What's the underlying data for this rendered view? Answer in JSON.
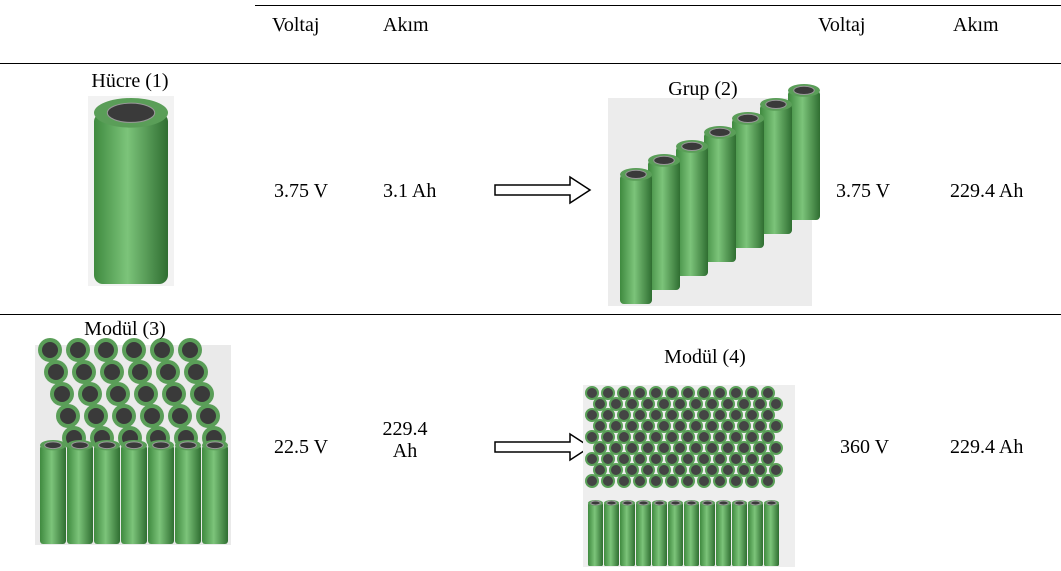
{
  "header": {
    "columns": [
      "Voltaj",
      "Akım",
      "Voltaj",
      "Akım"
    ]
  },
  "rows": [
    {
      "left_label": "Hücre (1)",
      "left_voltage": "3.75 V",
      "left_current": "3.1 Ah",
      "right_label": "Grup (2)",
      "right_voltage": "3.75 V",
      "right_current": "229.4 Ah"
    },
    {
      "left_label": "Modül (3)",
      "left_voltage": "22.5 V",
      "left_current": "229.4 Ah",
      "right_label": "Modül (4)",
      "right_voltage": "360 V",
      "right_current": "229.4 Ah"
    }
  ]
}
